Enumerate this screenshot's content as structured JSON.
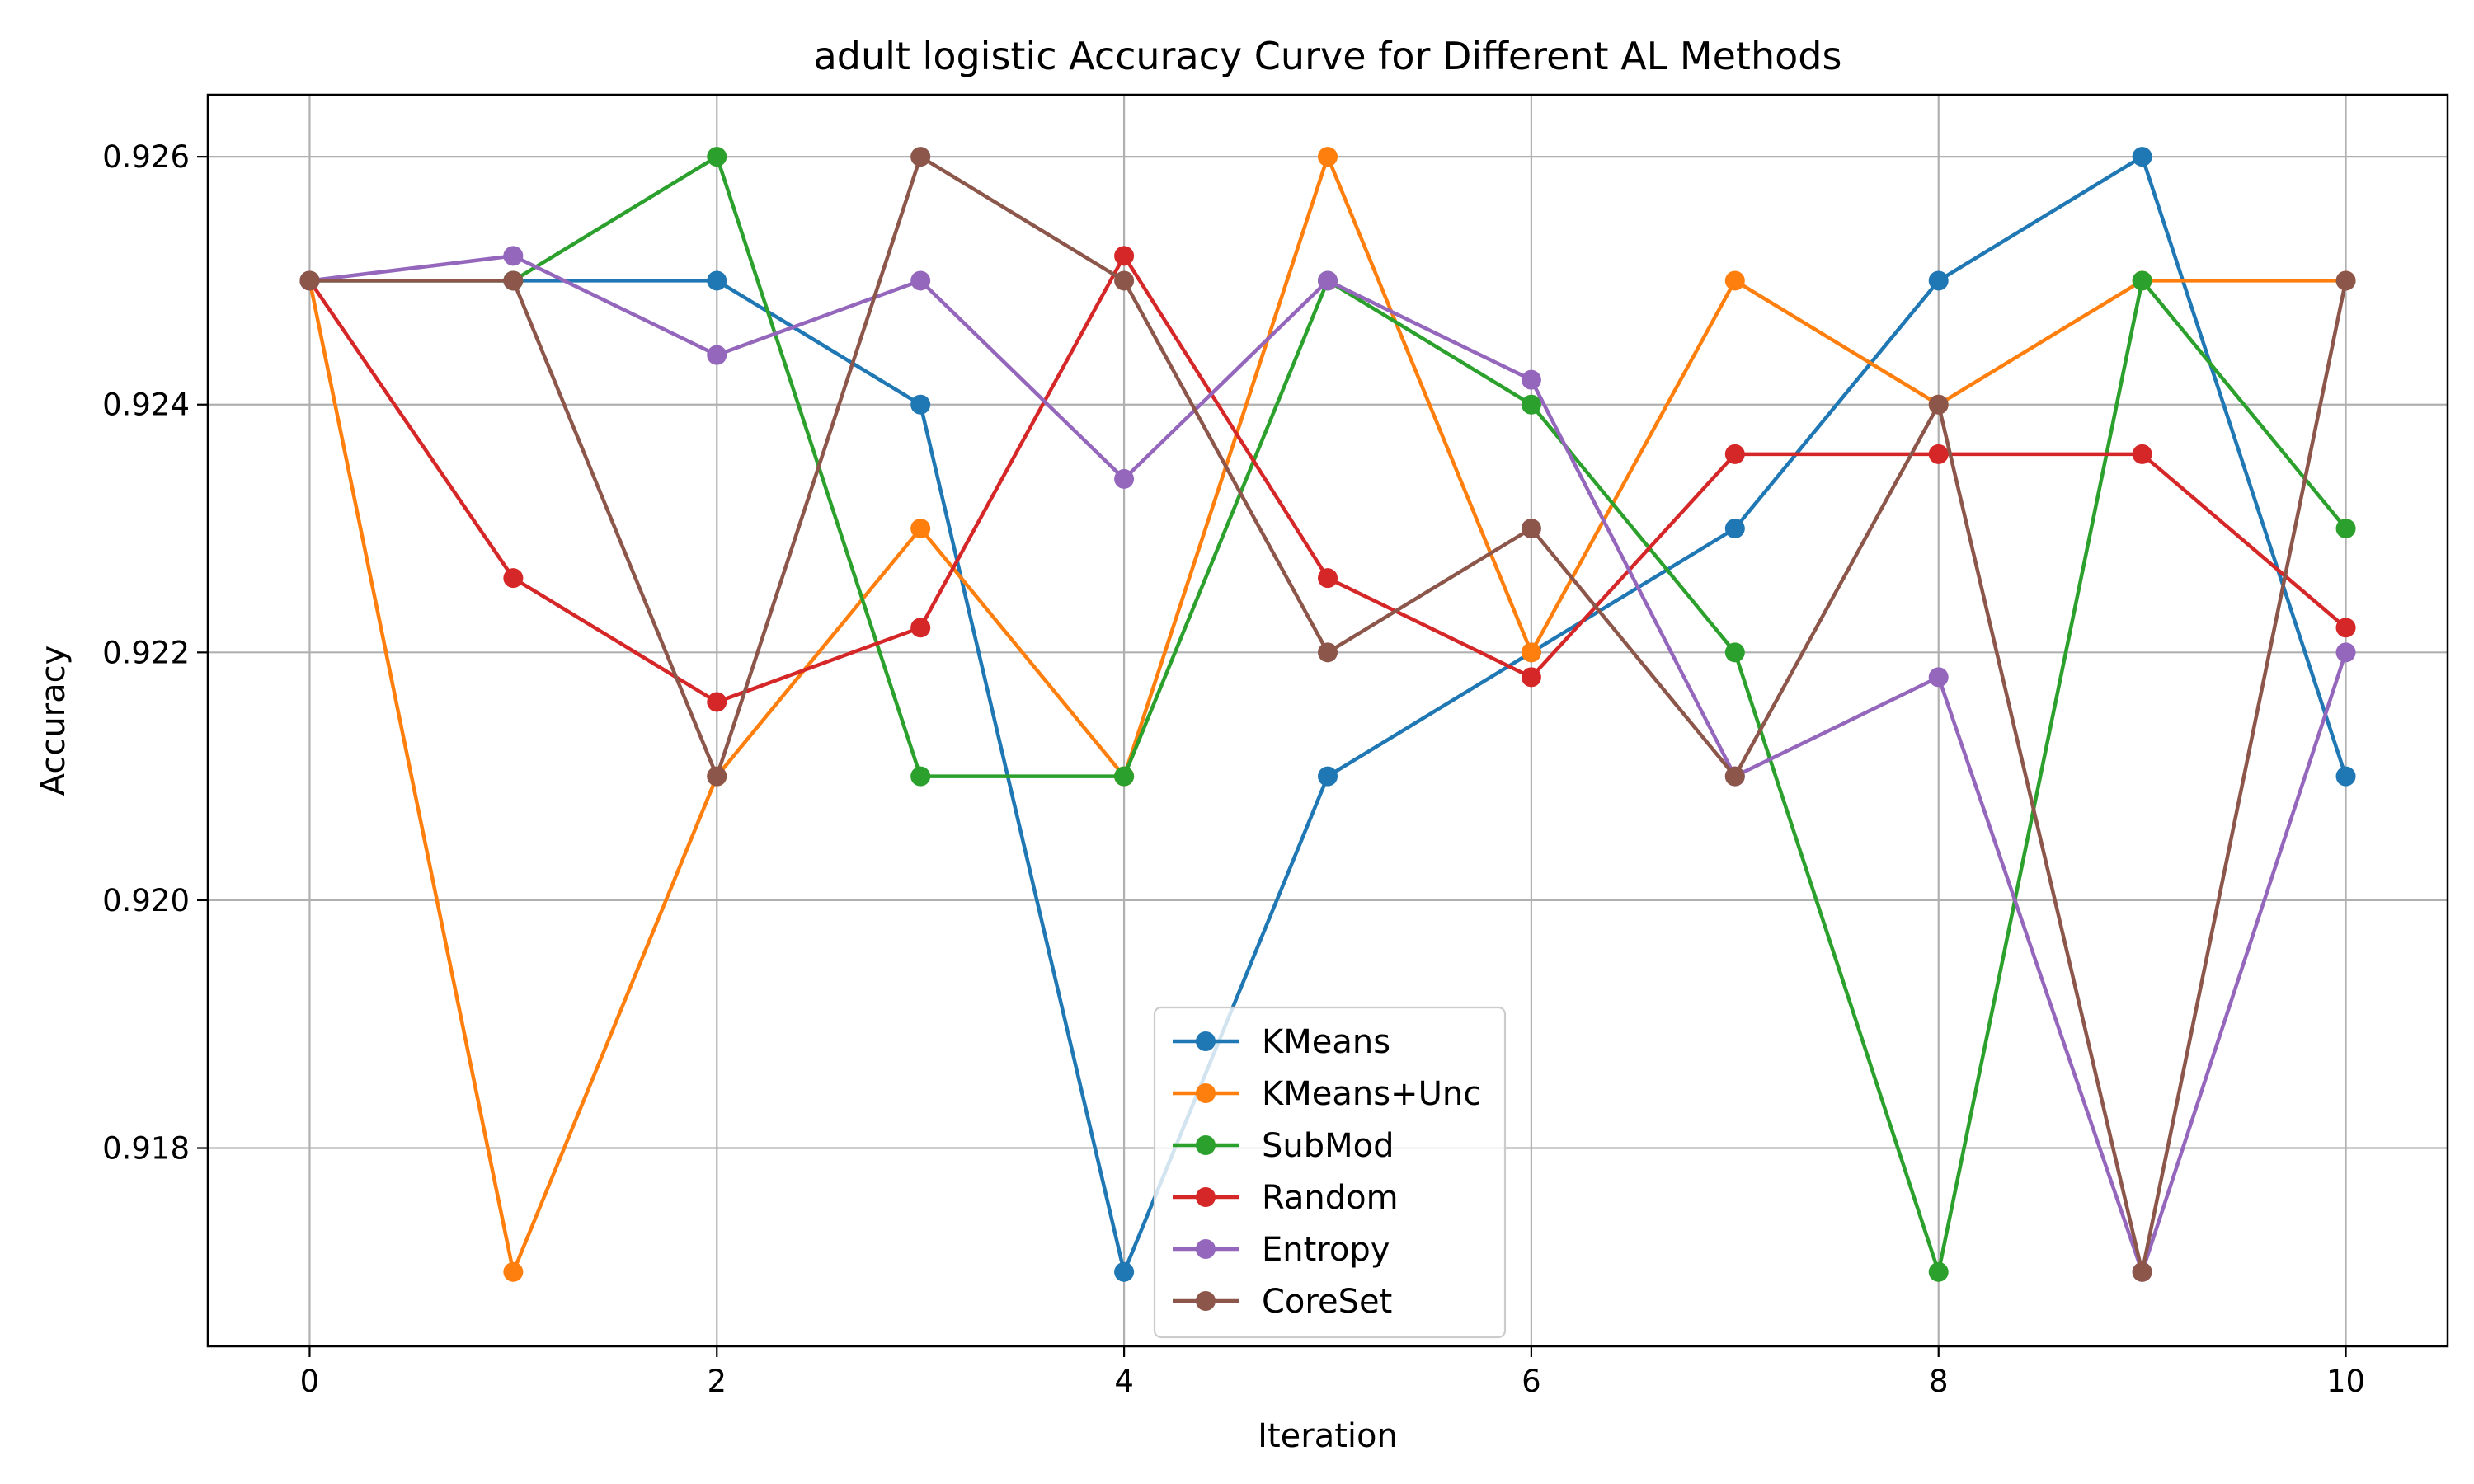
{
  "chart_data": {
    "type": "line",
    "title": "adult logistic Accuracy Curve for Different AL Methods",
    "xlabel": "Iteration",
    "ylabel": "Accuracy",
    "x": [
      0,
      1,
      2,
      3,
      4,
      5,
      6,
      7,
      8,
      9,
      10
    ],
    "xlim": [
      -0.5,
      10.5
    ],
    "ylim": [
      0.9164,
      0.9265
    ],
    "xticks": [
      0,
      2,
      4,
      6,
      8,
      10
    ],
    "xtick_labels": [
      "0",
      "2",
      "4",
      "6",
      "8",
      "10"
    ],
    "yticks": [
      0.918,
      0.92,
      0.922,
      0.924,
      0.926
    ],
    "ytick_labels": [
      "0.918",
      "0.920",
      "0.922",
      "0.924",
      "0.926"
    ],
    "grid": true,
    "legend_position": "lower-center",
    "series": [
      {
        "name": "KMeans",
        "color": "#1f77b4",
        "values": [
          0.925,
          0.925,
          0.925,
          0.924,
          0.917,
          0.921,
          0.922,
          0.923,
          0.925,
          0.926,
          0.921
        ]
      },
      {
        "name": "KMeans+Unc",
        "color": "#ff7f0e",
        "values": [
          0.925,
          0.917,
          0.921,
          0.923,
          0.921,
          0.926,
          0.922,
          0.925,
          0.924,
          0.925,
          0.925
        ]
      },
      {
        "name": "SubMod",
        "color": "#2ca02c",
        "values": [
          0.925,
          0.925,
          0.926,
          0.921,
          0.921,
          0.925,
          0.924,
          0.922,
          0.917,
          0.925,
          0.923
        ]
      },
      {
        "name": "Random",
        "color": "#d62728",
        "values": [
          0.925,
          0.9226,
          0.9216,
          0.9222,
          0.9252,
          0.9226,
          0.9218,
          0.9236,
          0.9236,
          0.9236,
          0.9222
        ]
      },
      {
        "name": "Entropy",
        "color": "#9467bd",
        "values": [
          0.925,
          0.9252,
          0.9244,
          0.925,
          0.9234,
          0.925,
          0.9242,
          0.921,
          0.9218,
          0.917,
          0.922
        ]
      },
      {
        "name": "CoreSet",
        "color": "#8c564b",
        "values": [
          0.925,
          0.925,
          0.921,
          0.926,
          0.925,
          0.922,
          0.923,
          0.921,
          0.924,
          0.917,
          0.925
        ]
      }
    ]
  }
}
